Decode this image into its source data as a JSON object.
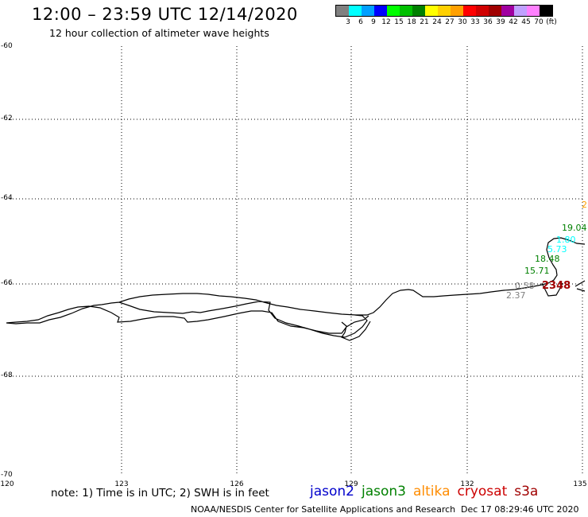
{
  "title": "12:00 – 23:59 UTC 12/14/2020",
  "subtitle": "12 hour collection of altimeter wave heights",
  "legend": {
    "colors": [
      "#808080",
      "#00ffff",
      "#00a0ff",
      "#0000ff",
      "#00ff00",
      "#00c000",
      "#008000",
      "#ffff00",
      "#ffd000",
      "#ffa000",
      "#ff0000",
      "#d00000",
      "#a00000",
      "#a000a0",
      "#c0a0ff",
      "#ff80ff",
      "#000000"
    ],
    "labels": [
      "3",
      "6",
      "9",
      "12",
      "15",
      "18",
      "21",
      "24",
      "27",
      "30",
      "33",
      "36",
      "39",
      "42",
      "45",
      "70",
      "(ft)"
    ]
  },
  "lat_labels": [
    "-60",
    "-62",
    "-64",
    "-66",
    "-68",
    "-70"
  ],
  "lon_labels": [
    "120",
    "123",
    "126",
    "129",
    "132",
    "135"
  ],
  "wave_values": [
    {
      "text": "2",
      "color": "#ffa000"
    },
    {
      "text": "19.04",
      "color": "#008000"
    },
    {
      "text": "1.80",
      "color": "#00ffff"
    },
    {
      "text": "5.73",
      "color": "#00ffff"
    },
    {
      "text": "18.48",
      "color": "#008000"
    },
    {
      "text": "15.71",
      "color": "#008000"
    },
    {
      "text": "0.58",
      "color": "#808080"
    },
    {
      "text": "2348",
      "color": "#a00000"
    },
    {
      "text": "2.37",
      "color": "#808080"
    }
  ],
  "note": "note: 1) Time is in UTC; 2) SWH is in feet",
  "satellites": [
    {
      "name": "jason2",
      "color": "#0000cc"
    },
    {
      "name": "jason3",
      "color": "#008000"
    },
    {
      "name": "altika",
      "color": "#ff8c00"
    },
    {
      "name": "cryosat",
      "color": "#cc0000"
    },
    {
      "name": "s3a",
      "color": "#a00000"
    }
  ],
  "footer": {
    "credit": "NOAA/NESDIS Center for Satellite Applications and Research",
    "timestamp": "Dec 17 08:29:46 UTC 2020"
  }
}
